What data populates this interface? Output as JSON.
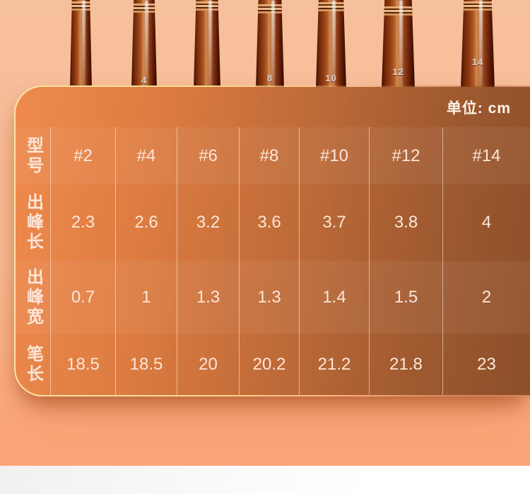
{
  "unit_label": "单位: cm",
  "table": {
    "row_headers": [
      "型号",
      "出峰长",
      "出峰宽",
      "笔长"
    ],
    "rows": [
      {
        "label": "型号",
        "values": [
          "#2",
          "#4",
          "#6",
          "#8",
          "#10",
          "#12",
          "#14"
        ]
      },
      {
        "label": "出峰长",
        "values": [
          "2.3",
          "2.6",
          "3.2",
          "3.6",
          "3.7",
          "3.8",
          "4"
        ]
      },
      {
        "label": "出峰宽",
        "values": [
          "0.7",
          "1",
          "1.3",
          "1.3",
          "1.4",
          "1.5",
          "2"
        ]
      },
      {
        "label": "笔长",
        "values": [
          "18.5",
          "18.5",
          "20",
          "20.2",
          "21.2",
          "21.8",
          "23"
        ]
      }
    ]
  },
  "brushes": {
    "labels": [
      "",
      "4",
      "",
      "8",
      "10",
      "12",
      "14"
    ]
  },
  "colors": {
    "page_background": "#f6bd98",
    "page_background_lower": "#fba478",
    "card_gradient_left": "#ef8a4d",
    "card_gradient_right": "#8c4f29",
    "card_gold_border": "#ffe3a4",
    "cell_text": "#fce6d8",
    "column_divider": "rgba(255,244,235,0.55)",
    "brush_wood_dark": "#6e2609",
    "brush_wood_light": "#d38c55"
  },
  "chart_data": {
    "type": "table",
    "unit_label": "单位: cm",
    "columns": [
      "型号",
      "#2",
      "#4",
      "#6",
      "#8",
      "#10",
      "#12",
      "#14"
    ],
    "rows": [
      [
        "出峰长",
        2.3,
        2.6,
        3.2,
        3.6,
        3.7,
        3.8,
        4
      ],
      [
        "出峰宽",
        0.7,
        1,
        1.3,
        1.3,
        1.4,
        1.5,
        2
      ],
      [
        "笔长",
        18.5,
        18.5,
        20,
        20.2,
        21.2,
        21.8,
        23
      ]
    ]
  }
}
